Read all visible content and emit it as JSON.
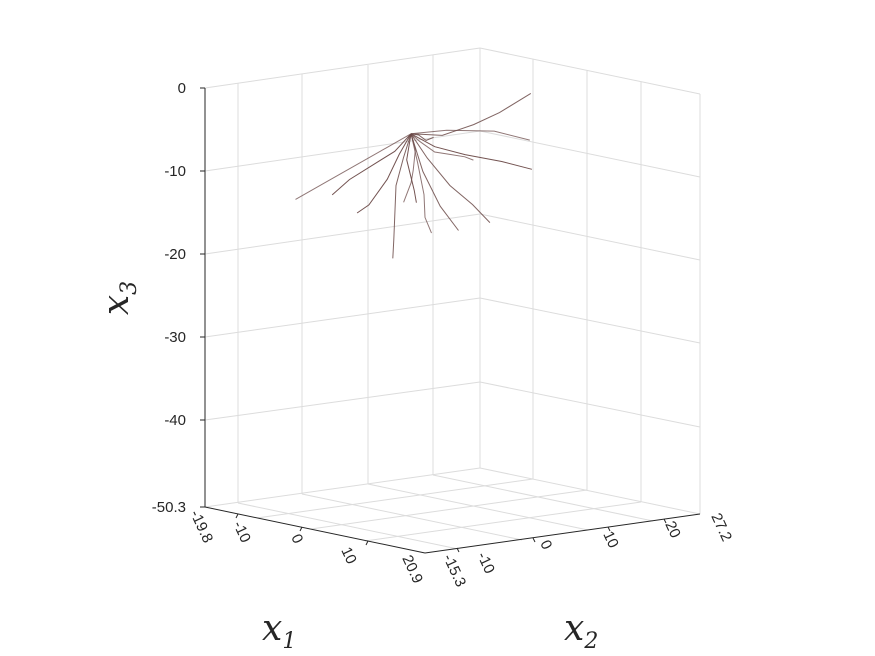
{
  "chart_data": {
    "type": "3d-line",
    "title": "",
    "axes": {
      "x1": {
        "label_base": "x",
        "label_sub": "1",
        "ticks": [
          "-19.8",
          "-10",
          "0",
          "10",
          "20.9"
        ],
        "lim": [
          -19.8,
          20.9
        ]
      },
      "x2": {
        "label_base": "x",
        "label_sub": "2",
        "ticks": [
          "-15.3",
          "-10",
          "0",
          "10",
          "20",
          "27.2"
        ],
        "lim": [
          -15.3,
          27.2
        ]
      },
      "x3": {
        "label_base": "x",
        "label_sub": "3",
        "ticks": [
          "0",
          "-10",
          "-20",
          "-30",
          "-40",
          "-50.3"
        ],
        "lim": [
          -50.3,
          0
        ]
      }
    },
    "grid": true,
    "line_color": "#6b4a48",
    "root_system": {
      "origin": [
        0,
        0,
        -4.5
      ],
      "branches": [
        [
          [
            0,
            0,
            -4.5
          ],
          [
            -2,
            3,
            -6
          ],
          [
            -4,
            7,
            -8
          ],
          [
            -6,
            11,
            -9
          ],
          [
            -8,
            15,
            -10
          ],
          [
            -10,
            18,
            -11
          ]
        ],
        [
          [
            0,
            0,
            -4.5
          ],
          [
            1,
            -2,
            -7
          ],
          [
            2,
            -4,
            -10
          ],
          [
            3,
            -5,
            -13
          ],
          [
            4,
            -6,
            -16
          ],
          [
            5,
            -7,
            -18
          ]
        ],
        [
          [
            0,
            0,
            -4.5
          ],
          [
            2,
            2,
            -6
          ],
          [
            4,
            5,
            -7
          ],
          [
            6,
            9,
            -8
          ],
          [
            8,
            12,
            -9
          ]
        ],
        [
          [
            0,
            0,
            -4.5
          ],
          [
            -1,
            -3,
            -6
          ],
          [
            -3,
            -6,
            -8
          ],
          [
            -5,
            -9,
            -10
          ],
          [
            -7,
            -12,
            -12
          ]
        ],
        [
          [
            0,
            0,
            -4.5
          ],
          [
            3,
            0,
            -7
          ],
          [
            6,
            1,
            -10
          ],
          [
            9,
            2,
            -12
          ],
          [
            11,
            3,
            -14
          ]
        ],
        [
          [
            0,
            0,
            -4.5
          ],
          [
            -3,
            0,
            -7
          ],
          [
            -6,
            -1,
            -9
          ],
          [
            -9,
            -2,
            -11
          ],
          [
            -11,
            -3,
            -13
          ]
        ],
        [
          [
            0,
            0,
            -4.5
          ],
          [
            0,
            1,
            -8
          ],
          [
            0,
            2,
            -12
          ],
          [
            -1,
            3,
            -15
          ],
          [
            -1,
            4,
            -17
          ]
        ],
        [
          [
            0,
            0,
            -4.5
          ],
          [
            1,
            4,
            -5
          ],
          [
            2,
            8,
            -4
          ],
          [
            2,
            12,
            -3
          ],
          [
            3,
            16,
            -1
          ]
        ],
        [
          [
            0,
            0,
            -4.5
          ],
          [
            -1,
            -1,
            -7
          ],
          [
            -2,
            -2,
            -10
          ],
          [
            -3,
            -4,
            -13
          ],
          [
            -4,
            -5,
            -14
          ]
        ],
        [
          [
            0,
            0,
            -4.5
          ],
          [
            2,
            -1,
            -6
          ],
          [
            4,
            -3,
            -8
          ],
          [
            6,
            -5,
            -9
          ],
          [
            7,
            -7,
            -11
          ]
        ],
        [
          [
            0,
            0,
            -4.5
          ],
          [
            1,
            1,
            -9
          ],
          [
            3,
            2,
            -13
          ],
          [
            4,
            4,
            -16
          ]
        ],
        [
          [
            0,
            0,
            -4.5
          ],
          [
            -2,
            1,
            -8
          ],
          [
            -3,
            3,
            -12
          ],
          [
            -5,
            5,
            -14
          ]
        ],
        [
          [
            0,
            0,
            -4.5
          ],
          [
            3,
            3,
            -4
          ],
          [
            7,
            7,
            -4
          ],
          [
            10,
            10,
            -5
          ]
        ],
        [
          [
            0,
            0,
            -4.5
          ],
          [
            -1,
            2,
            -5
          ],
          [
            -2,
            4,
            -6
          ],
          [
            -3,
            6,
            -6
          ]
        ]
      ]
    }
  }
}
